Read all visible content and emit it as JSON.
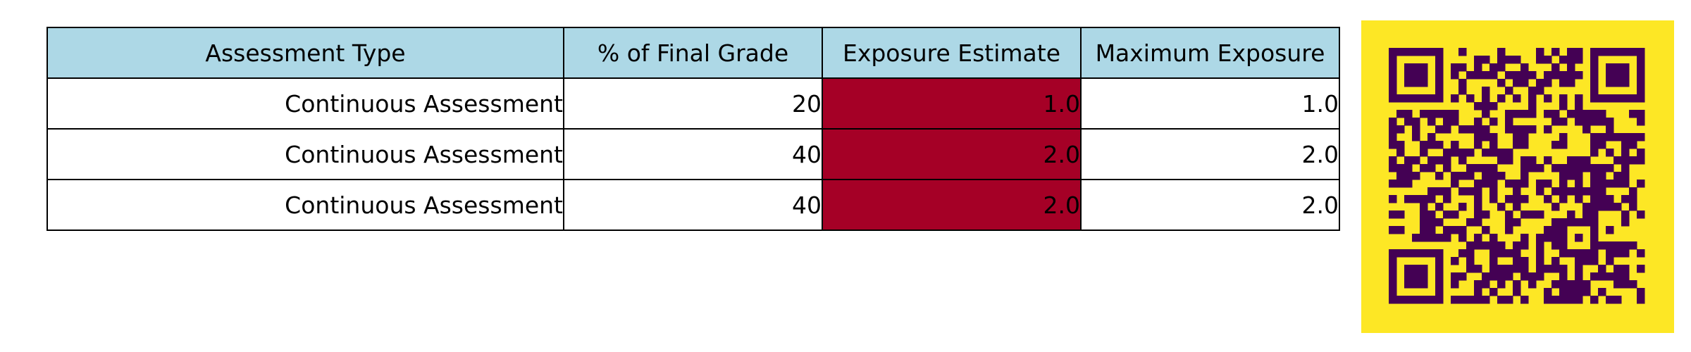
{
  "table": {
    "headers": {
      "assessment_type": "Assessment Type",
      "final_grade_pct": "% of Final Grade",
      "exposure_estimate": "Exposure Estimate",
      "maximum_exposure": "Maximum Exposure"
    },
    "rows": [
      {
        "assessment_type": "Continuous Assessment",
        "final_grade_pct": "20",
        "exposure_estimate": "1.0",
        "maximum_exposure": "1.0"
      },
      {
        "assessment_type": "Continuous Assessment",
        "final_grade_pct": "40",
        "exposure_estimate": "2.0",
        "maximum_exposure": "2.0"
      },
      {
        "assessment_type": "Continuous Assessment",
        "final_grade_pct": "40",
        "exposure_estimate": "2.0",
        "maximum_exposure": "2.0"
      }
    ]
  },
  "colors": {
    "header_bg": "#add8e6",
    "highlight_cell": "#a50026",
    "qr_background": "#fde725",
    "qr_modules": "#440154"
  },
  "qr": {
    "icon": "qr-code-icon"
  }
}
